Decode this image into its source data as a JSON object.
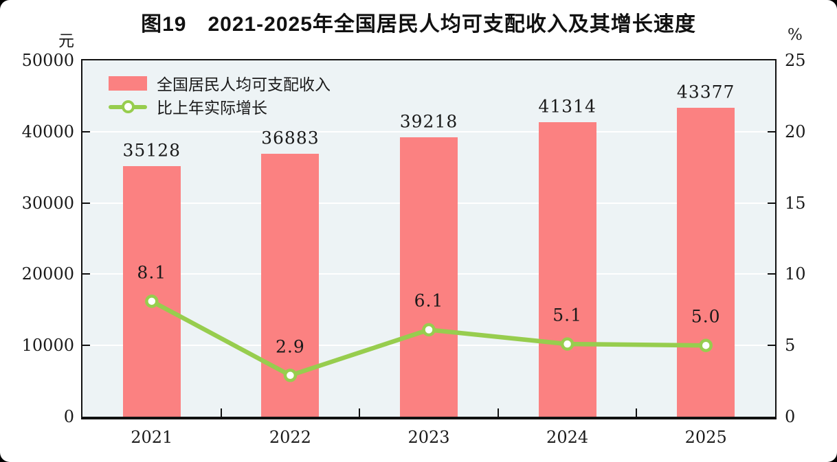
{
  "page": {
    "background": "#000000",
    "card_background": "#ffffff",
    "text_color": "#1a1a1a"
  },
  "chart_data": {
    "type": "bar+line",
    "title": "图19　2021-2025年全国居民人均可支配收入及其增长速度",
    "categories": [
      "2021",
      "2022",
      "2023",
      "2024",
      "2025"
    ],
    "series": [
      {
        "name": "全国居民人均可支配收入",
        "type": "bar",
        "axis": "left",
        "color": "#fb8181",
        "values": [
          35128,
          36883,
          39218,
          41314,
          43377
        ],
        "value_labels": [
          "35128",
          "36883",
          "39218",
          "41314",
          "43377"
        ]
      },
      {
        "name": "比上年实际增长",
        "type": "line",
        "axis": "right",
        "color": "#97cd4e",
        "marker": "circle-open",
        "values": [
          8.1,
          2.9,
          6.1,
          5.1,
          5.0
        ],
        "value_labels": [
          "8.1",
          "2.9",
          "6.1",
          "5.1",
          "5.0"
        ]
      }
    ],
    "left_axis": {
      "unit": "元",
      "min": 0,
      "max": 50000,
      "ticks": [
        0,
        10000,
        20000,
        30000,
        40000,
        50000
      ],
      "tick_labels": [
        "0",
        "10000",
        "20000",
        "30000",
        "40000",
        "50000"
      ]
    },
    "right_axis": {
      "unit": "%",
      "min": 0,
      "max": 25,
      "ticks": [
        0,
        5,
        10,
        15,
        20,
        25
      ],
      "tick_labels": [
        "0",
        "5",
        "10",
        "15",
        "20",
        "25"
      ]
    },
    "legend": {
      "position": "top-left",
      "items": [
        "全国居民人均可支配收入",
        "比上年实际增长"
      ]
    },
    "grid": true,
    "plot_background": "#edf3f5",
    "gridline_color": "#ffffff"
  }
}
